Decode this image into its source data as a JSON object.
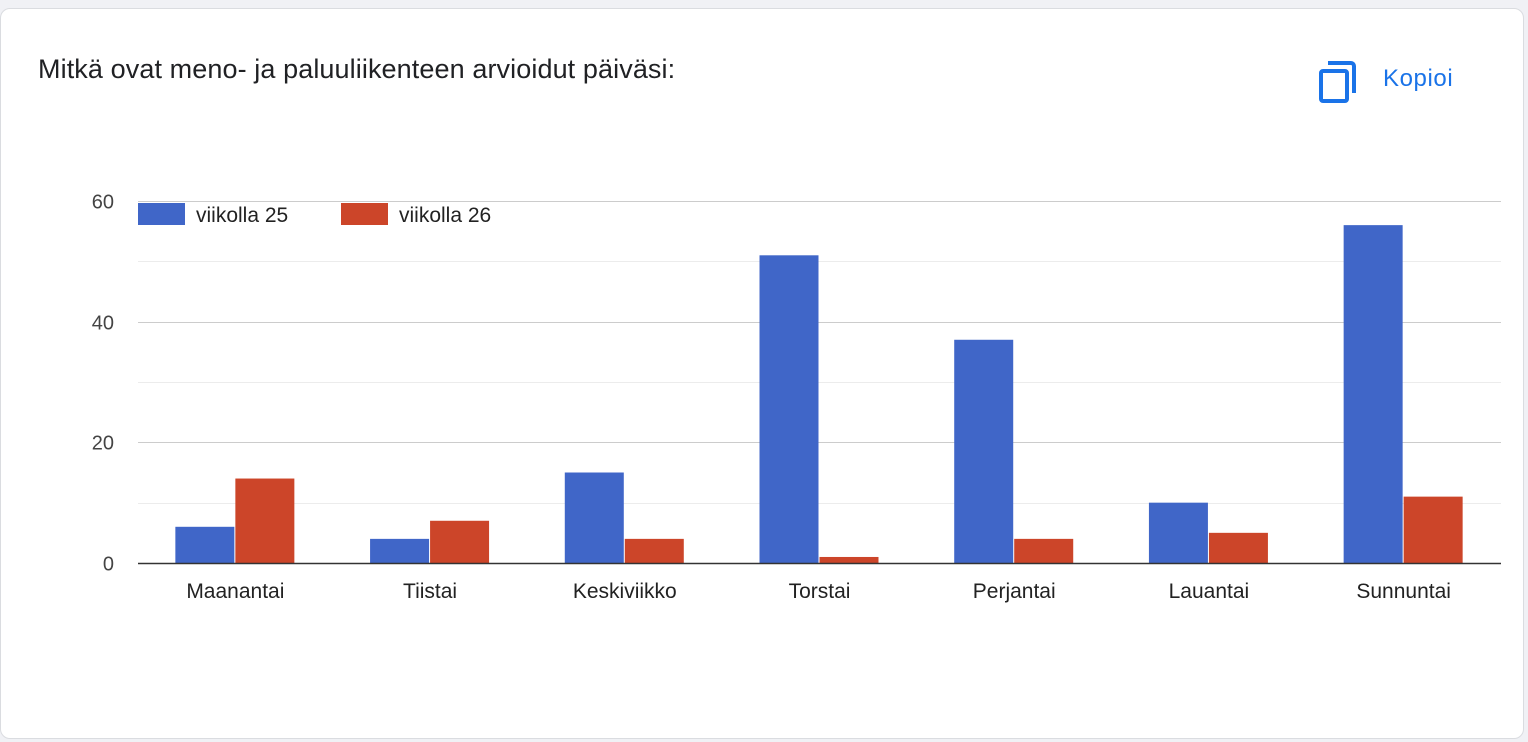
{
  "question": {
    "title": "Mitkä ovat meno- ja paluuliikenteen arvioidut päiväsi:"
  },
  "toolbar": {
    "copy_label": "Kopioi",
    "copy_icon": "copy-icon",
    "accent_color": "#1a73e8"
  },
  "chart_data": {
    "type": "bar",
    "title": "",
    "xlabel": "",
    "ylabel": "",
    "ylim": [
      0,
      60
    ],
    "yticks": [
      0,
      20,
      40,
      60
    ],
    "grid": true,
    "legend": "top-left",
    "categories": [
      "Maanantai",
      "Tiistai",
      "Keskiviikko",
      "Torstai",
      "Perjantai",
      "Lauantai",
      "Sunnuntai"
    ],
    "series": [
      {
        "name": "viikolla 25",
        "color": "#4066c8",
        "values": [
          6,
          4,
          15,
          51,
          37,
          10,
          56
        ]
      },
      {
        "name": "viikolla 26",
        "color": "#cc4529",
        "values": [
          14,
          7,
          4,
          1,
          4,
          5,
          11
        ]
      }
    ]
  }
}
